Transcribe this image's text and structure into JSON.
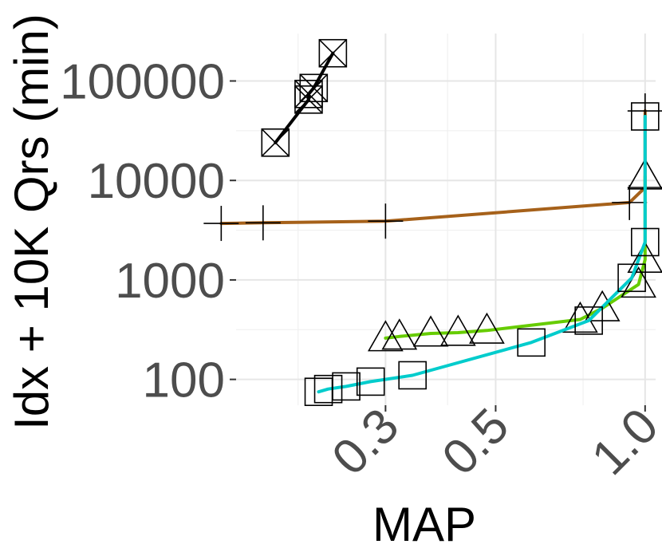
{
  "chart_data": {
    "type": "line",
    "title": "",
    "xlabel": "MAP",
    "ylabel": "Idx + 10K Qrs (min)",
    "x_scale": "log",
    "y_scale": "log",
    "xlim": [
      0.15,
      1.05
    ],
    "ylim": [
      55,
      300000
    ],
    "x_ticks": [
      {
        "value": 0.3,
        "label": "0.3"
      },
      {
        "value": 0.5,
        "label": "0.5"
      },
      {
        "value": 1.0,
        "label": "1.0"
      }
    ],
    "x_minor_ticks": [
      0.2,
      0.4,
      0.75
    ],
    "y_ticks": [
      {
        "value": 100,
        "label": "100"
      },
      {
        "value": 1000,
        "label": "1000"
      },
      {
        "value": 10000,
        "label": "10000"
      },
      {
        "value": 100000,
        "label": "100000"
      }
    ],
    "grid": true,
    "legend": "none",
    "series": [
      {
        "color": "#000000",
        "marker": "square-x",
        "x": [
          0.18,
          0.21,
          0.21,
          0.215,
          0.235
        ],
        "y": [
          24000,
          65000,
          74000,
          85000,
          190000
        ]
      },
      {
        "color": "#a6611a",
        "marker": "plus",
        "x": [
          0.14,
          0.17,
          0.3,
          0.93,
          1.0,
          1.0
        ],
        "y": [
          3700,
          3750,
          3900,
          6000,
          8500,
          50000
        ]
      },
      {
        "color": "#66cc00",
        "marker": "triangle",
        "x": [
          0.3,
          0.32,
          0.37,
          0.42,
          0.48,
          0.74,
          0.82,
          0.97,
          1.0,
          1.0
        ],
        "y": [
          260,
          270,
          290,
          295,
          310,
          400,
          520,
          900,
          1600,
          11000
        ]
      },
      {
        "color": "#00cccc",
        "marker": "square",
        "x": [
          0.22,
          0.23,
          0.25,
          0.28,
          0.34,
          0.59,
          0.77,
          0.94,
          1.0,
          1.0
        ],
        "y": [
          75,
          80,
          85,
          95,
          110,
          235,
          390,
          1050,
          2400,
          44000
        ]
      }
    ]
  }
}
